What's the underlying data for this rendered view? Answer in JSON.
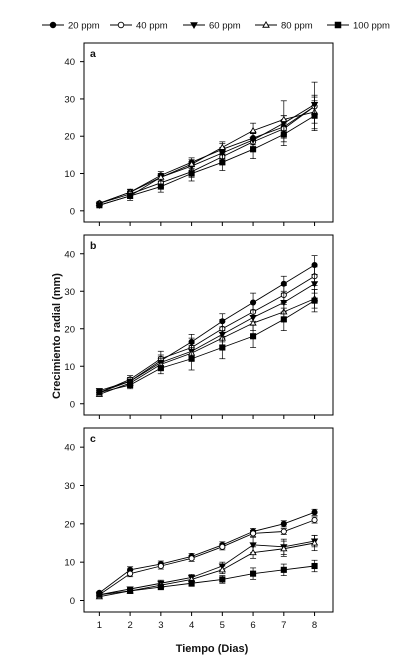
{
  "legend": {
    "entries": [
      "20 ppm",
      "40 ppm",
      "60 ppm",
      "80 ppm",
      "100 ppm"
    ],
    "markers": [
      "filled-circle",
      "open-circle",
      "filled-triangle-down",
      "open-triangle-up",
      "filled-square"
    ]
  },
  "axes": {
    "ylabel": "Crecimiento radial (mm)",
    "xlabel": "Tiempo (Dias)",
    "x_ticks": [
      "1",
      "2",
      "3",
      "4",
      "5",
      "6",
      "7",
      "8"
    ],
    "y_ticks": [
      "0",
      "10",
      "20",
      "30",
      "40"
    ]
  },
  "chart_data": [
    {
      "type": "line",
      "panel": "a",
      "x": [
        1,
        2,
        3,
        4,
        5,
        6,
        7,
        8
      ],
      "xlim": [
        0.5,
        8.6
      ],
      "ylim": [
        -3,
        45
      ],
      "grid": false,
      "series": [
        {
          "name": "20 ppm",
          "values": [
            2.0,
            5.0,
            9.5,
            13.0,
            16.5,
            19.5,
            22.5,
            28.0
          ],
          "error": [
            0.4,
            0.8,
            1.0,
            1.2,
            1.5,
            1.8,
            2.0,
            2.5
          ]
        },
        {
          "name": "40 ppm",
          "values": [
            2.0,
            4.5,
            7.5,
            10.5,
            14.5,
            18.5,
            22.0,
            28.0
          ],
          "error": [
            0.4,
            0.8,
            1.2,
            1.5,
            2.0,
            2.2,
            3.5,
            6.5
          ]
        },
        {
          "name": "60 ppm",
          "values": [
            1.5,
            4.0,
            9.0,
            12.0,
            15.5,
            19.0,
            23.5,
            28.5
          ],
          "error": [
            0.4,
            0.7,
            1.0,
            1.2,
            1.5,
            1.8,
            2.0,
            2.5
          ]
        },
        {
          "name": "80 ppm",
          "values": [
            2.0,
            5.0,
            9.0,
            12.5,
            17.0,
            21.5,
            24.5,
            26.5
          ],
          "error": [
            0.4,
            0.7,
            1.0,
            1.2,
            1.5,
            2.0,
            5.0,
            3.0
          ]
        },
        {
          "name": "100 ppm",
          "values": [
            1.5,
            4.0,
            6.5,
            10.0,
            13.0,
            16.5,
            20.5,
            25.5
          ],
          "error": [
            0.4,
            1.2,
            1.5,
            2.0,
            2.2,
            2.5,
            3.0,
            3.5
          ]
        }
      ]
    },
    {
      "type": "line",
      "panel": "b",
      "x": [
        1,
        2,
        3,
        4,
        5,
        6,
        7,
        8
      ],
      "xlim": [
        0.5,
        8.6
      ],
      "ylim": [
        -3,
        45
      ],
      "grid": false,
      "series": [
        {
          "name": "20 ppm",
          "values": [
            3.0,
            6.0,
            11.5,
            16.5,
            22.0,
            27.0,
            32.0,
            37.0
          ],
          "error": [
            0.5,
            1.0,
            1.5,
            2.0,
            2.0,
            2.5,
            2.0,
            2.5
          ]
        },
        {
          "name": "40 ppm",
          "values": [
            3.0,
            6.5,
            12.0,
            15.0,
            20.0,
            24.5,
            29.0,
            34.0
          ],
          "error": [
            0.5,
            1.0,
            2.0,
            2.5,
            2.5,
            2.5,
            2.5,
            2.5
          ]
        },
        {
          "name": "60 ppm",
          "values": [
            3.5,
            6.0,
            11.0,
            14.0,
            18.5,
            23.0,
            27.0,
            32.0
          ],
          "error": [
            0.5,
            1.0,
            1.5,
            2.0,
            2.0,
            2.0,
            2.5,
            2.5
          ]
        },
        {
          "name": "80 ppm",
          "values": [
            2.5,
            5.5,
            10.5,
            13.5,
            17.5,
            21.5,
            24.5,
            28.0
          ],
          "error": [
            0.5,
            1.0,
            1.5,
            2.0,
            2.0,
            2.0,
            2.5,
            2.5
          ]
        },
        {
          "name": "100 ppm",
          "values": [
            3.0,
            5.0,
            9.5,
            12.0,
            15.0,
            18.0,
            22.5,
            27.5
          ],
          "error": [
            0.5,
            1.0,
            1.5,
            3.0,
            3.0,
            3.0,
            3.0,
            3.0
          ]
        }
      ]
    },
    {
      "type": "line",
      "panel": "c",
      "x": [
        1,
        2,
        3,
        4,
        5,
        6,
        7,
        8
      ],
      "xlim": [
        0.5,
        8.6
      ],
      "ylim": [
        -3,
        45
      ],
      "grid": false,
      "series": [
        {
          "name": "20 ppm",
          "values": [
            2.0,
            8.0,
            9.5,
            11.5,
            14.5,
            18.0,
            20.0,
            23.0
          ],
          "error": [
            0.3,
            0.8,
            0.8,
            0.8,
            0.8,
            0.8,
            0.8,
            0.8
          ]
        },
        {
          "name": "40 ppm",
          "values": [
            1.5,
            7.0,
            9.0,
            11.0,
            14.0,
            17.5,
            18.0,
            21.0
          ],
          "error": [
            0.3,
            0.8,
            0.8,
            0.8,
            0.8,
            0.8,
            0.8,
            0.8
          ]
        },
        {
          "name": "60 ppm",
          "values": [
            1.5,
            3.0,
            4.5,
            6.0,
            9.0,
            14.5,
            14.0,
            15.5
          ],
          "error": [
            0.3,
            0.5,
            0.8,
            0.8,
            1.0,
            2.0,
            2.0,
            1.5
          ]
        },
        {
          "name": "80 ppm",
          "values": [
            1.0,
            2.5,
            4.0,
            5.5,
            8.0,
            12.5,
            13.5,
            15.0
          ],
          "error": [
            0.3,
            0.5,
            0.8,
            0.8,
            1.0,
            1.5,
            2.0,
            2.0
          ]
        },
        {
          "name": "100 ppm",
          "values": [
            1.5,
            2.5,
            3.5,
            4.5,
            5.5,
            7.0,
            8.0,
            9.0
          ],
          "error": [
            0.3,
            0.5,
            0.5,
            0.8,
            1.0,
            1.5,
            1.5,
            1.5
          ]
        }
      ]
    }
  ]
}
